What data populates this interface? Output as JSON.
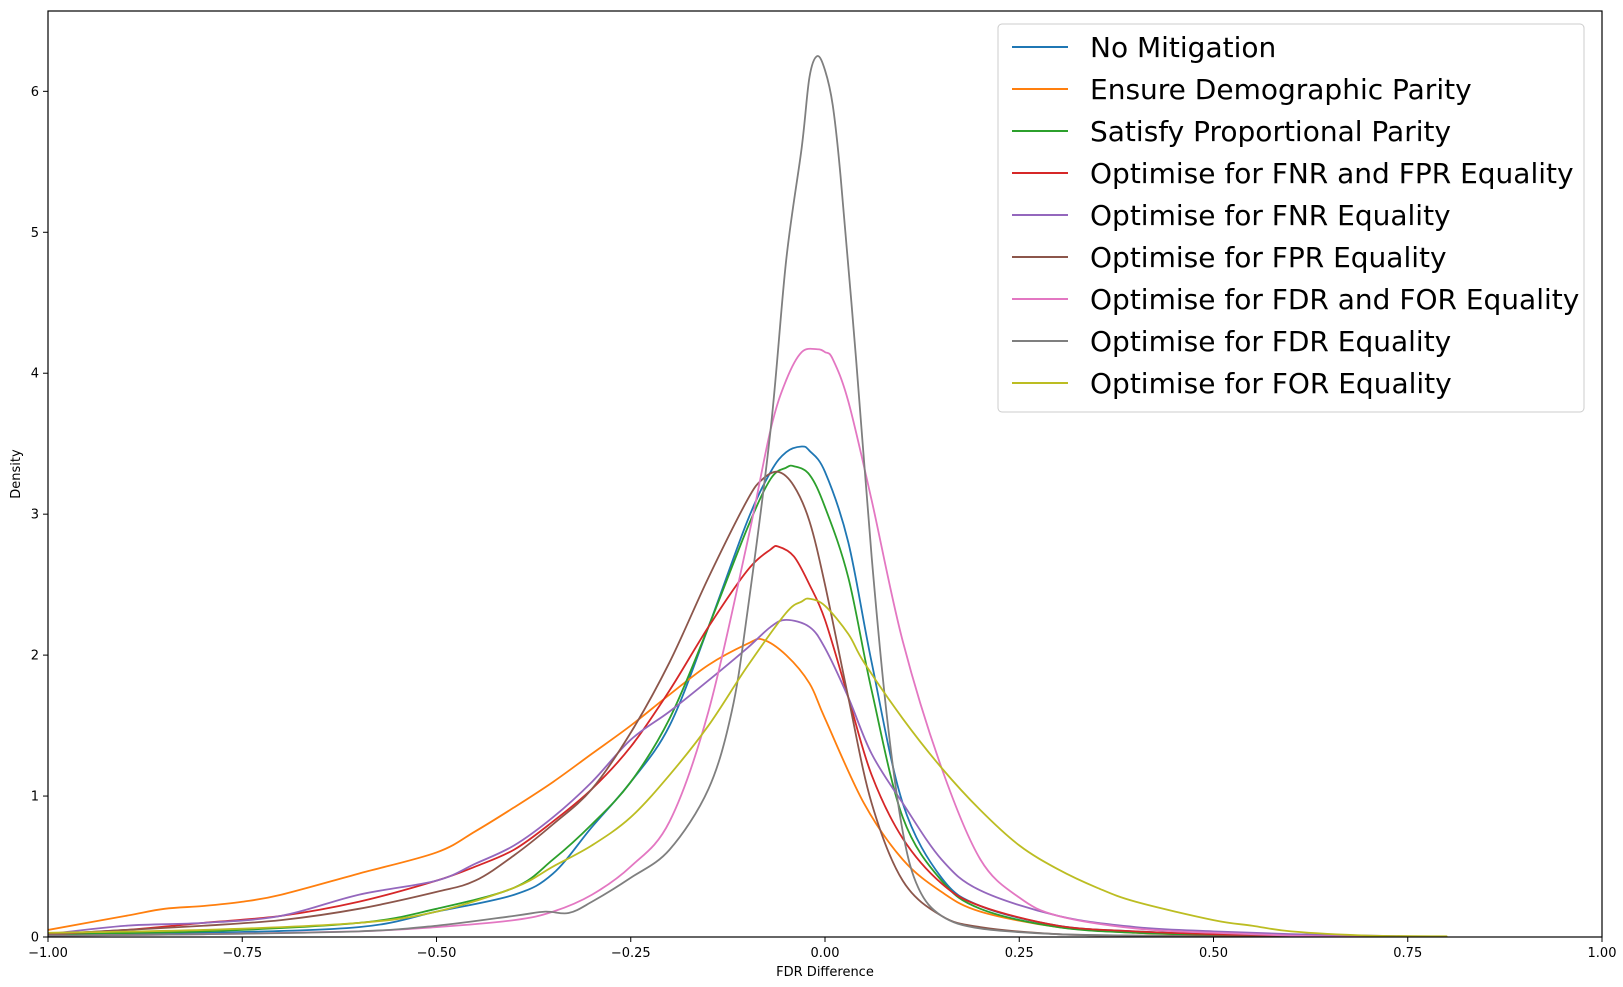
{
  "chart_data": {
    "type": "line",
    "title": "",
    "xlabel": "FDR Difference",
    "ylabel": "Density",
    "xlim": [
      -1.0,
      1.0
    ],
    "ylim": [
      0,
      6.57
    ],
    "xticks": [
      -1.0,
      -0.75,
      -0.5,
      -0.25,
      0.0,
      0.25,
      0.5,
      0.75,
      1.0
    ],
    "xtick_labels": [
      "−1.00",
      "−0.75",
      "−0.50",
      "−0.25",
      "0.00",
      "0.25",
      "0.50",
      "0.75",
      "1.00"
    ],
    "yticks": [
      0,
      1,
      2,
      3,
      4,
      5,
      6
    ],
    "ytick_labels": [
      "0",
      "1",
      "2",
      "3",
      "4",
      "5",
      "6"
    ],
    "grid": false,
    "legend_position": "top-right",
    "series": [
      {
        "name": "No Mitigation",
        "color": "#1f77b4",
        "x": [
          -1.0,
          -0.8,
          -0.6,
          -0.5,
          -0.4,
          -0.35,
          -0.3,
          -0.25,
          -0.2,
          -0.15,
          -0.1,
          -0.07,
          -0.05,
          -0.03,
          -0.02,
          0.0,
          0.03,
          0.06,
          0.1,
          0.15,
          0.2,
          0.3,
          0.4,
          0.5,
          0.6,
          0.7,
          0.8
        ],
        "y": [
          0.02,
          0.03,
          0.07,
          0.18,
          0.3,
          0.45,
          0.78,
          1.1,
          1.5,
          2.2,
          2.95,
          3.3,
          3.44,
          3.48,
          3.45,
          3.3,
          2.8,
          1.95,
          0.95,
          0.42,
          0.22,
          0.08,
          0.04,
          0.02,
          0.01,
          0.005,
          0.0
        ]
      },
      {
        "name": "Ensure Demographic Parity",
        "color": "#ff7f0e",
        "x": [
          -1.0,
          -0.9,
          -0.85,
          -0.8,
          -0.75,
          -0.7,
          -0.6,
          -0.5,
          -0.45,
          -0.4,
          -0.35,
          -0.3,
          -0.25,
          -0.2,
          -0.15,
          -0.1,
          -0.08,
          -0.05,
          -0.02,
          0.0,
          0.05,
          0.1,
          0.15,
          0.2,
          0.3,
          0.4,
          0.5,
          0.6,
          0.7,
          0.8
        ],
        "y": [
          0.05,
          0.15,
          0.2,
          0.22,
          0.25,
          0.3,
          0.45,
          0.6,
          0.75,
          0.92,
          1.1,
          1.3,
          1.5,
          1.72,
          1.93,
          2.08,
          2.11,
          2.0,
          1.8,
          1.55,
          0.95,
          0.55,
          0.32,
          0.18,
          0.07,
          0.03,
          0.015,
          0.01,
          0.005,
          0.0
        ]
      },
      {
        "name": "Satisfy Proportional Parity",
        "color": "#2ca02c",
        "x": [
          -1.0,
          -0.8,
          -0.6,
          -0.5,
          -0.4,
          -0.35,
          -0.3,
          -0.25,
          -0.2,
          -0.15,
          -0.1,
          -0.07,
          -0.05,
          -0.04,
          -0.02,
          0.0,
          0.03,
          0.06,
          0.1,
          0.15,
          0.2,
          0.3,
          0.4,
          0.5,
          0.6,
          0.7,
          0.8
        ],
        "y": [
          0.02,
          0.04,
          0.1,
          0.2,
          0.35,
          0.55,
          0.8,
          1.1,
          1.55,
          2.2,
          2.9,
          3.25,
          3.33,
          3.34,
          3.28,
          3.05,
          2.55,
          1.75,
          0.85,
          0.4,
          0.2,
          0.07,
          0.03,
          0.015,
          0.01,
          0.005,
          0.0
        ]
      },
      {
        "name": "Optimise for FNR and FPR Equality",
        "color": "#d62728",
        "x": [
          -1.0,
          -0.9,
          -0.8,
          -0.7,
          -0.6,
          -0.5,
          -0.45,
          -0.4,
          -0.35,
          -0.3,
          -0.25,
          -0.2,
          -0.15,
          -0.1,
          -0.07,
          -0.06,
          -0.04,
          -0.02,
          0.0,
          0.03,
          0.06,
          0.1,
          0.15,
          0.2,
          0.3,
          0.4,
          0.5,
          0.6,
          0.7,
          0.8
        ],
        "y": [
          0.02,
          0.05,
          0.1,
          0.15,
          0.25,
          0.4,
          0.5,
          0.62,
          0.82,
          1.05,
          1.35,
          1.75,
          2.2,
          2.6,
          2.75,
          2.77,
          2.7,
          2.5,
          2.25,
          1.7,
          1.15,
          0.7,
          0.38,
          0.22,
          0.08,
          0.04,
          0.02,
          0.01,
          0.005,
          0.0
        ]
      },
      {
        "name": "Optimise for FNR Equality",
        "color": "#9467bd",
        "x": [
          -1.0,
          -0.9,
          -0.8,
          -0.7,
          -0.6,
          -0.5,
          -0.45,
          -0.4,
          -0.35,
          -0.3,
          -0.25,
          -0.2,
          -0.15,
          -0.1,
          -0.07,
          -0.05,
          -0.02,
          0.0,
          0.03,
          0.06,
          0.1,
          0.15,
          0.2,
          0.3,
          0.4,
          0.5,
          0.6,
          0.7,
          0.8
        ],
        "y": [
          0.02,
          0.08,
          0.1,
          0.15,
          0.3,
          0.4,
          0.52,
          0.65,
          0.85,
          1.1,
          1.4,
          1.6,
          1.82,
          2.05,
          2.2,
          2.25,
          2.2,
          2.05,
          1.7,
          1.3,
          0.95,
          0.55,
          0.33,
          0.15,
          0.07,
          0.04,
          0.02,
          0.01,
          0.0
        ]
      },
      {
        "name": "Optimise for FPR Equality",
        "color": "#8c564b",
        "x": [
          -1.0,
          -0.9,
          -0.8,
          -0.7,
          -0.6,
          -0.5,
          -0.45,
          -0.4,
          -0.35,
          -0.3,
          -0.25,
          -0.2,
          -0.15,
          -0.1,
          -0.08,
          -0.06,
          -0.04,
          -0.02,
          0.0,
          0.03,
          0.06,
          0.1,
          0.15,
          0.2,
          0.3,
          0.4,
          0.5,
          0.6,
          0.7
        ],
        "y": [
          0.02,
          0.05,
          0.08,
          0.12,
          0.2,
          0.32,
          0.4,
          0.58,
          0.8,
          1.05,
          1.45,
          1.95,
          2.55,
          3.1,
          3.25,
          3.3,
          3.2,
          2.95,
          2.5,
          1.7,
          0.95,
          0.4,
          0.15,
          0.07,
          0.02,
          0.01,
          0.005,
          0.0,
          0.0
        ]
      },
      {
        "name": "Optimise for FDR and FOR Equality",
        "color": "#e377c2",
        "x": [
          -1.0,
          -0.8,
          -0.6,
          -0.5,
          -0.4,
          -0.35,
          -0.3,
          -0.25,
          -0.2,
          -0.15,
          -0.1,
          -0.07,
          -0.05,
          -0.03,
          -0.01,
          0.0,
          0.01,
          0.03,
          0.06,
          0.1,
          0.15,
          0.2,
          0.25,
          0.3,
          0.4,
          0.5,
          0.6,
          0.7
        ],
        "y": [
          0.01,
          0.02,
          0.04,
          0.07,
          0.12,
          0.18,
          0.3,
          0.5,
          0.82,
          1.6,
          2.8,
          3.6,
          3.95,
          4.15,
          4.17,
          4.15,
          4.1,
          3.8,
          3.1,
          2.1,
          1.2,
          0.55,
          0.28,
          0.15,
          0.06,
          0.03,
          0.01,
          0.0
        ]
      },
      {
        "name": "Optimise for FDR Equality",
        "color": "#7f7f7f",
        "x": [
          -1.0,
          -0.8,
          -0.6,
          -0.5,
          -0.4,
          -0.36,
          -0.33,
          -0.3,
          -0.25,
          -0.2,
          -0.15,
          -0.12,
          -0.1,
          -0.07,
          -0.05,
          -0.03,
          -0.02,
          -0.01,
          0.0,
          0.01,
          0.02,
          0.04,
          0.06,
          0.08,
          0.1,
          0.12,
          0.15,
          0.2,
          0.3,
          0.4,
          0.5
        ],
        "y": [
          0.01,
          0.02,
          0.04,
          0.08,
          0.15,
          0.18,
          0.17,
          0.25,
          0.42,
          0.62,
          1.05,
          1.6,
          2.3,
          3.6,
          4.8,
          5.6,
          6.1,
          6.25,
          6.15,
          5.9,
          5.4,
          4.1,
          2.7,
          1.55,
          0.75,
          0.35,
          0.15,
          0.06,
          0.02,
          0.01,
          0.0
        ]
      },
      {
        "name": "Optimise for FOR Equality",
        "color": "#bcbd22",
        "x": [
          -1.0,
          -0.8,
          -0.6,
          -0.5,
          -0.4,
          -0.35,
          -0.3,
          -0.25,
          -0.2,
          -0.15,
          -0.1,
          -0.05,
          -0.03,
          -0.02,
          0.0,
          0.03,
          0.05,
          0.1,
          0.15,
          0.2,
          0.25,
          0.3,
          0.35,
          0.4,
          0.5,
          0.55,
          0.6,
          0.7,
          0.8
        ],
        "y": [
          0.03,
          0.05,
          0.1,
          0.18,
          0.35,
          0.5,
          0.65,
          0.85,
          1.15,
          1.5,
          1.92,
          2.3,
          2.38,
          2.4,
          2.35,
          2.15,
          1.95,
          1.55,
          1.2,
          0.9,
          0.65,
          0.48,
          0.35,
          0.25,
          0.12,
          0.08,
          0.04,
          0.01,
          0.005
        ]
      }
    ]
  }
}
